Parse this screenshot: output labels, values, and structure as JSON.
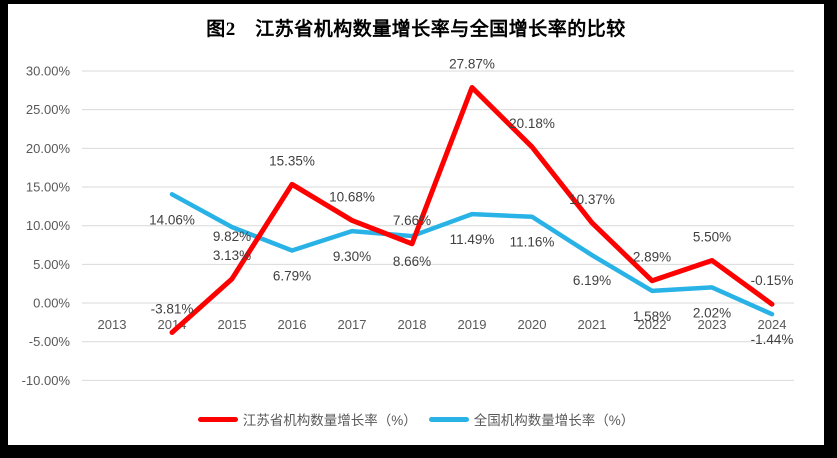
{
  "page": {
    "frame_color": "#000000",
    "panel_color": "#ffffff"
  },
  "chart_data": {
    "type": "line",
    "title": "图2　江苏省机构数量增长率与全国增长率的比较",
    "categories": [
      "2013",
      "2014",
      "2015",
      "2016",
      "2017",
      "2018",
      "2019",
      "2020",
      "2021",
      "2022",
      "2023",
      "2024"
    ],
    "y_axis": {
      "min": -10,
      "max": 30,
      "step": 5,
      "tick_labels": [
        "30.00%",
        "25.00%",
        "20.00%",
        "15.00%",
        "10.00%",
        "5.00%",
        "0.00%",
        "-5.00%",
        "-10.00%"
      ]
    },
    "grid": true,
    "legend_position": "bottom",
    "series": [
      {
        "name": "江苏省机构数量增长率（%）",
        "color": "#ff0000",
        "stroke_width": 5,
        "label_position": "above",
        "label_dy": -19,
        "label_dy_overrides": {},
        "values": [
          null,
          -3.81,
          3.13,
          15.35,
          10.68,
          7.66,
          27.87,
          20.18,
          10.37,
          2.89,
          5.5,
          -0.15
        ],
        "labels": [
          null,
          "-3.81%",
          "3.13%",
          "15.35%",
          "10.68%",
          "7.66%",
          "27.87%",
          "20.18%",
          "10.37%",
          "2.89%",
          "5.50%",
          "-0.15%"
        ]
      },
      {
        "name": "全国机构数量增长率（%）",
        "color": "#29b2e6",
        "stroke_width": 4.5,
        "label_position": "below",
        "label_dy": 30,
        "label_dy_overrides": {
          "2015": 14
        },
        "values": [
          null,
          14.06,
          9.82,
          6.79,
          9.3,
          8.66,
          11.49,
          11.16,
          6.19,
          1.58,
          2.02,
          -1.44
        ],
        "labels": [
          null,
          "14.06%",
          "9.82%",
          "6.79%",
          "9.30%",
          "8.66%",
          "11.49%",
          "11.16%",
          "6.19%",
          "1.58%",
          "2.02%",
          "-1.44%"
        ]
      }
    ],
    "styles": {
      "grid_color": "#d9d9d9",
      "axis_label_color": "#595959",
      "data_label_color": "#404040",
      "title_color": "#000000"
    }
  }
}
